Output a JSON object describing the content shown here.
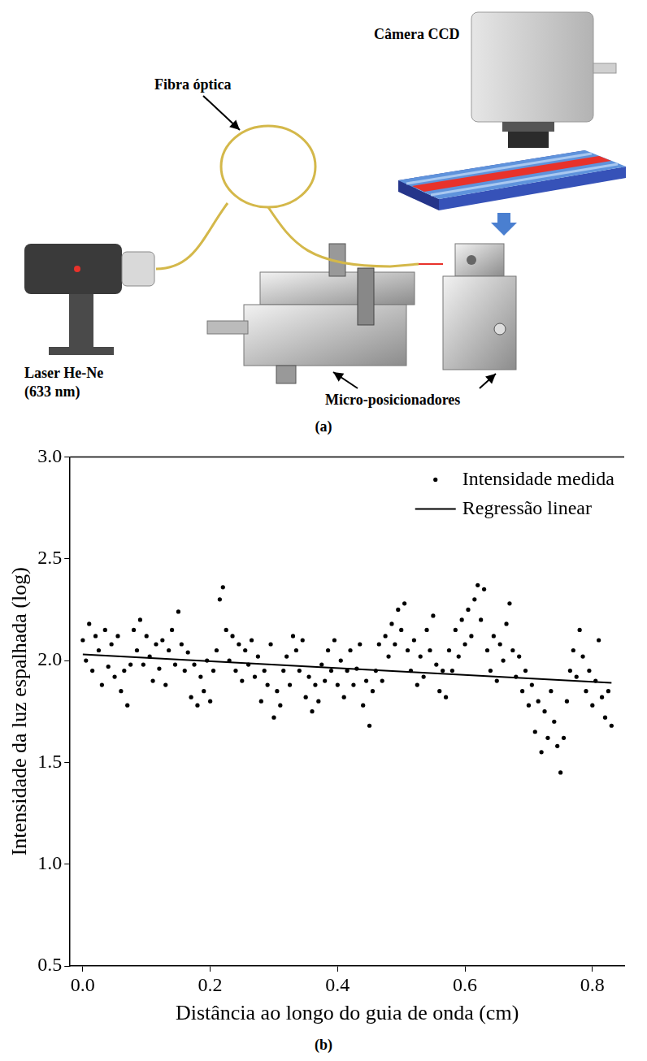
{
  "diagram": {
    "panel_label": "(a)",
    "labels": {
      "camera": "Câmera CCD",
      "fiber": "Fibra óptica",
      "laser": [
        "Laser He-Ne",
        "(633 nm)"
      ],
      "positioners": "Micro-posicionadores"
    }
  },
  "chart_panel_label": "(b)",
  "chart_data": {
    "type": "scatter",
    "x_label": "Distância ao longo do guia de onda (cm)",
    "y_label": "Intensidade da luz espalhada (log)",
    "xlim": [
      -0.02,
      0.85
    ],
    "xticks": [
      {
        "value": 0,
        "label": "0.0"
      },
      0.2,
      0.4,
      0.6,
      0.8
    ],
    "ylim": [
      0.5,
      3.0
    ],
    "yticks": [
      0.5,
      {
        "value": 1,
        "label": "1.0"
      },
      1.5,
      {
        "value": 2,
        "label": "2.0"
      },
      2.5,
      {
        "value": 3,
        "label": "3.0"
      }
    ],
    "grid": false,
    "legend": "upper right",
    "series": [
      {
        "name": "Intensidade medida",
        "type": "scatter",
        "marker": "circle",
        "color": "#000000",
        "x": [
          0,
          0.005,
          0.01,
          0.015,
          0.02,
          0.025,
          0.03,
          0.035,
          0.04,
          0.045,
          0.05,
          0.055,
          0.06,
          0.065,
          0.07,
          0.075,
          0.08,
          0.085,
          0.09,
          0.095,
          0.1,
          0.105,
          0.11,
          0.115,
          0.12,
          0.125,
          0.13,
          0.135,
          0.14,
          0.145,
          0.15,
          0.155,
          0.16,
          0.165,
          0.17,
          0.175,
          0.18,
          0.185,
          0.19,
          0.195,
          0.2,
          0.205,
          0.21,
          0.215,
          0.22,
          0.225,
          0.23,
          0.235,
          0.24,
          0.245,
          0.25,
          0.255,
          0.26,
          0.265,
          0.27,
          0.275,
          0.28,
          0.285,
          0.29,
          0.295,
          0.3,
          0.305,
          0.31,
          0.315,
          0.32,
          0.325,
          0.33,
          0.335,
          0.34,
          0.345,
          0.35,
          0.355,
          0.36,
          0.365,
          0.37,
          0.375,
          0.38,
          0.385,
          0.39,
          0.395,
          0.4,
          0.405,
          0.41,
          0.415,
          0.42,
          0.425,
          0.43,
          0.435,
          0.44,
          0.445,
          0.45,
          0.455,
          0.46,
          0.465,
          0.47,
          0.475,
          0.48,
          0.485,
          0.49,
          0.495,
          0.5,
          0.505,
          0.51,
          0.515,
          0.52,
          0.525,
          0.53,
          0.535,
          0.54,
          0.545,
          0.55,
          0.555,
          0.56,
          0.565,
          0.57,
          0.575,
          0.58,
          0.585,
          0.59,
          0.595,
          0.6,
          0.605,
          0.61,
          0.615,
          0.62,
          0.625,
          0.63,
          0.635,
          0.64,
          0.645,
          0.65,
          0.655,
          0.66,
          0.665,
          0.67,
          0.675,
          0.68,
          0.685,
          0.69,
          0.695,
          0.7,
          0.705,
          0.71,
          0.715,
          0.72,
          0.725,
          0.73,
          0.735,
          0.74,
          0.745,
          0.75,
          0.755,
          0.76,
          0.765,
          0.77,
          0.775,
          0.78,
          0.785,
          0.79,
          0.795,
          0.8,
          0.805,
          0.81,
          0.815,
          0.82,
          0.825,
          0.83
        ],
        "values": [
          2.1,
          2.0,
          2.18,
          1.95,
          2.12,
          2.05,
          1.88,
          2.15,
          1.97,
          2.08,
          1.92,
          2.12,
          1.85,
          1.95,
          1.78,
          1.98,
          2.15,
          2.05,
          2.2,
          1.98,
          2.12,
          2.02,
          1.9,
          2.08,
          1.96,
          2.1,
          1.88,
          2.05,
          2.15,
          1.98,
          2.24,
          2.08,
          1.95,
          2.04,
          1.82,
          1.98,
          1.78,
          1.92,
          1.85,
          2.0,
          1.8,
          1.95,
          2.05,
          2.3,
          2.36,
          2.15,
          2.0,
          2.12,
          1.95,
          2.08,
          1.9,
          2.05,
          1.98,
          2.1,
          1.92,
          2.02,
          1.8,
          1.95,
          1.88,
          2.08,
          1.72,
          1.85,
          1.78,
          1.95,
          2.02,
          1.88,
          2.12,
          2.05,
          1.95,
          2.1,
          1.82,
          1.92,
          1.75,
          1.88,
          1.8,
          1.98,
          1.9,
          2.05,
          1.95,
          2.1,
          1.88,
          2.0,
          1.82,
          1.95,
          2.05,
          1.88,
          1.96,
          2.08,
          1.78,
          1.9,
          1.68,
          1.85,
          1.95,
          2.08,
          1.9,
          2.12,
          2.02,
          2.18,
          2.08,
          2.25,
          2.15,
          2.28,
          2.05,
          1.95,
          2.1,
          1.88,
          2.02,
          1.92,
          2.15,
          2.05,
          2.22,
          1.98,
          1.85,
          1.95,
          1.82,
          2.05,
          1.95,
          2.15,
          2.02,
          2.2,
          2.08,
          2.25,
          2.12,
          2.3,
          2.37,
          2.2,
          2.35,
          2.05,
          1.95,
          2.12,
          1.9,
          2.08,
          2.0,
          2.18,
          2.28,
          2.05,
          1.92,
          2.02,
          1.85,
          1.95,
          1.78,
          1.88,
          1.65,
          1.8,
          1.55,
          1.75,
          1.62,
          1.85,
          1.7,
          1.58,
          1.45,
          1.62,
          1.8,
          1.95,
          2.05,
          1.92,
          2.15,
          2.02,
          1.85,
          1.95,
          1.78,
          1.9,
          2.1,
          1.82,
          1.72,
          1.85,
          1.68
        ]
      },
      {
        "name": "Regressão linear",
        "type": "line",
        "line_style": "solid",
        "color": "#000000",
        "x": [
          0,
          0.83
        ],
        "values": [
          2.03,
          1.89
        ]
      }
    ]
  }
}
